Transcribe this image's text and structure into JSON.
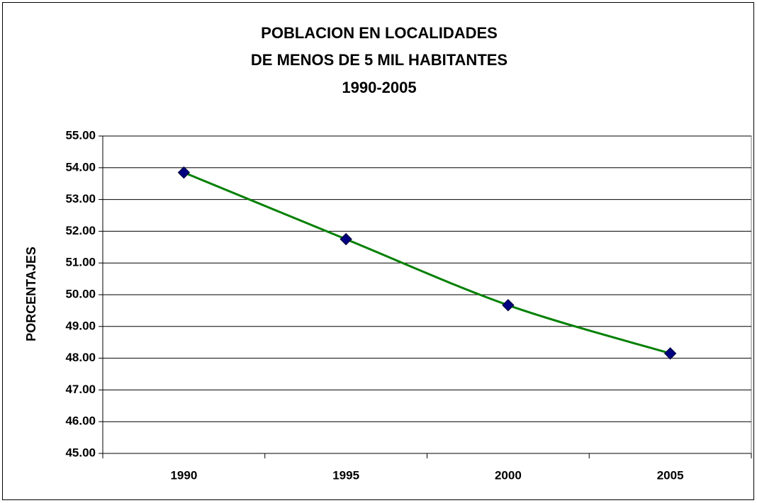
{
  "chart_data": {
    "type": "line",
    "title": [
      "POBLACION EN LOCALIDADES",
      "DE MENOS DE 5 MIL HABITANTES",
      "1990-2005"
    ],
    "y_label": "PORCENTAJES",
    "categories": [
      "1990",
      "1995",
      "2000",
      "2005"
    ],
    "series": [
      {
        "name": "PORCENTAJES",
        "color": "#008000",
        "marker_color": "#000080",
        "values": [
          53.85,
          51.75,
          49.67,
          48.15
        ]
      }
    ],
    "ylim": [
      45,
      55
    ],
    "yticks": [
      {
        "value": 45,
        "label": "45.00"
      },
      {
        "value": 46,
        "label": "46.00"
      },
      {
        "value": 47,
        "label": "47.00"
      },
      {
        "value": 48,
        "label": "48.00"
      },
      {
        "value": 49,
        "label": "49.00"
      },
      {
        "value": 50,
        "label": "50.00"
      },
      {
        "value": 51,
        "label": "51.00"
      },
      {
        "value": 52,
        "label": "52.00"
      },
      {
        "value": 53,
        "label": "53.00"
      },
      {
        "value": 54,
        "label": "54.00"
      },
      {
        "value": 55,
        "label": "55.00"
      }
    ],
    "grid": true,
    "smooth": true
  }
}
